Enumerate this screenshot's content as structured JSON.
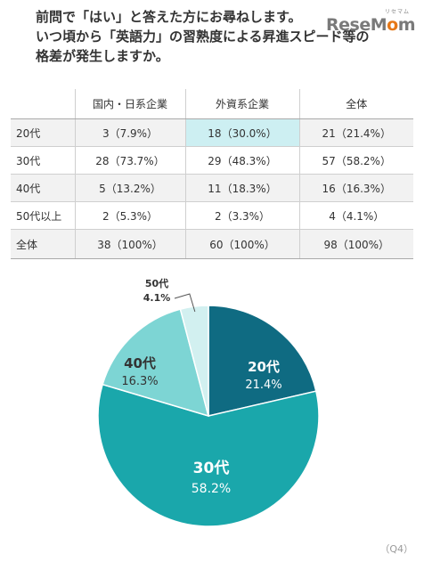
{
  "question": {
    "lines": [
      "前問で「はい」と答えた方にお尋ねします。",
      "いつ頃から「英語力」の習熟度による昇進スピード等の",
      "格差が発生しますか。"
    ]
  },
  "logo": {
    "text_pre": "ReseM",
    "text_o": "o",
    "text_post": "m",
    "ruby": "リセマム"
  },
  "table": {
    "headers": [
      "",
      "国内・日系企業",
      "外資系企業",
      "全体"
    ],
    "rows": [
      {
        "label": "20代",
        "cells": [
          "3（7.9%）",
          "18（30.0%）",
          "21（21.4%）"
        ]
      },
      {
        "label": "30代",
        "cells": [
          "28（73.7%）",
          "29（48.3%）",
          "57（58.2%）"
        ]
      },
      {
        "label": "40代",
        "cells": [
          "5（13.2%）",
          "11（18.3%）",
          "16（16.3%）"
        ]
      },
      {
        "label": "50代以上",
        "cells": [
          "2（5.3%）",
          "2（3.3%）",
          "4（4.1%）"
        ]
      },
      {
        "label": "全体",
        "cells": [
          "38（100%）",
          "60（100%）",
          "98（100%）"
        ]
      }
    ],
    "highlight_color": "#cdeff2"
  },
  "chart_data": {
    "type": "pie",
    "title": "",
    "slices": [
      {
        "label": "20代",
        "value": 21.4,
        "display": "21.4%",
        "color": "#0f6b82"
      },
      {
        "label": "30代",
        "value": 58.2,
        "display": "58.2%",
        "color": "#1aa7ab"
      },
      {
        "label": "40代",
        "value": 16.3,
        "display": "16.3%",
        "color": "#7dd5d4"
      },
      {
        "label": "50代",
        "value": 4.1,
        "display": "4.1%",
        "color": "#d2f0f0"
      }
    ],
    "start": "12 o'clock, clockwise"
  },
  "footer": {
    "question_number": "（Q4）"
  }
}
